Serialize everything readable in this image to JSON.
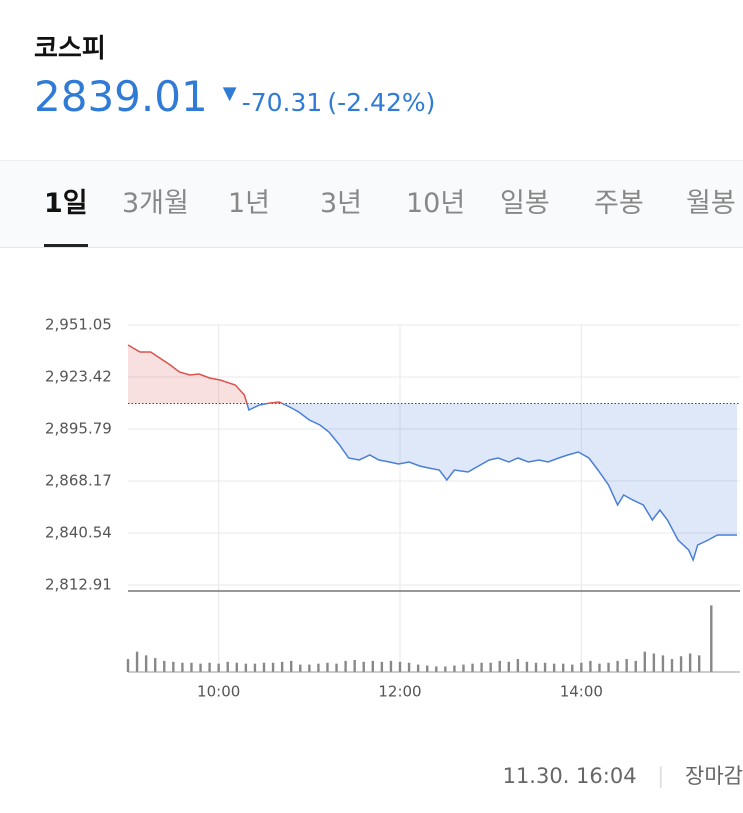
{
  "header": {
    "name": "코스피",
    "price": "2839.01",
    "change": "-70.31",
    "change_pct": "(-2.42%)"
  },
  "tabs": {
    "items": [
      "1일",
      "3개월",
      "1년",
      "3년",
      "10년",
      "일봉",
      "주봉",
      "월봉"
    ],
    "selected": 0
  },
  "chart_data": [
    {
      "type": "line",
      "x": [
        540,
        548,
        555,
        561,
        568,
        574,
        581,
        587,
        594,
        601,
        611,
        617,
        620,
        627,
        634,
        640,
        647,
        653,
        660,
        667,
        673,
        680,
        686,
        693,
        700,
        706,
        713,
        719,
        726,
        733,
        739,
        746,
        751,
        756,
        765,
        772,
        779,
        785,
        792,
        798,
        805,
        812,
        818,
        825,
        831,
        838,
        845,
        851,
        858,
        864,
        868,
        874,
        881,
        887,
        892,
        897,
        904,
        911,
        914,
        917,
        924,
        930,
        943
      ],
      "values": [
        2940.42,
        2936.71,
        2936.71,
        2933.52,
        2929.8,
        2926.08,
        2924.49,
        2925.02,
        2922.89,
        2921.83,
        2919.17,
        2913.86,
        2905.89,
        2908.55,
        2909.61,
        2910.14,
        2907.48,
        2904.83,
        2900.58,
        2897.92,
        2894.2,
        2887.29,
        2880.39,
        2879.33,
        2881.98,
        2879.33,
        2878.26,
        2877.2,
        2878.26,
        2876.14,
        2875.07,
        2874.01,
        2868.7,
        2874.01,
        2872.95,
        2876.14,
        2879.33,
        2880.39,
        2878.26,
        2880.39,
        2878.26,
        2879.33,
        2878.26,
        2880.39,
        2881.98,
        2883.57,
        2880.39,
        2874.01,
        2866.04,
        2855.42,
        2860.73,
        2858.08,
        2855.42,
        2847.45,
        2852.74,
        2847.45,
        2836.82,
        2831.51,
        2826.19,
        2834.16,
        2836.82,
        2839.48,
        2839.48
      ],
      "baseline": 2909.32,
      "up_color": "#d9534f",
      "down_color": "#4a7fd6",
      "xlim": [
        540,
        945
      ],
      "xticks": [
        {
          "value": 600,
          "label": "10:00"
        },
        {
          "value": 720,
          "label": "12:00"
        },
        {
          "value": 840,
          "label": "14:00"
        }
      ],
      "ylim": [
        2812.91,
        2951.05
      ],
      "yticks": [
        {
          "value": 2951.05,
          "label": "2,951.05"
        },
        {
          "value": 2923.42,
          "label": "2,923.42"
        },
        {
          "value": 2895.79,
          "label": "2,895.79"
        },
        {
          "value": 2868.17,
          "label": "2,868.17"
        },
        {
          "value": 2840.54,
          "label": "2,840.54"
        },
        {
          "value": 2812.91,
          "label": "2,812.91"
        }
      ],
      "grid": true
    },
    {
      "type": "bar",
      "color": "#888888",
      "xlim": [
        540,
        945
      ],
      "ylim": [
        0,
        80
      ],
      "x": [
        540,
        546,
        552,
        558,
        564,
        570,
        576,
        582,
        588,
        594,
        600,
        606,
        612,
        618,
        624,
        630,
        636,
        642,
        648,
        654,
        660,
        666,
        672,
        678,
        684,
        690,
        696,
        702,
        708,
        714,
        720,
        726,
        732,
        738,
        744,
        750,
        756,
        762,
        768,
        774,
        780,
        786,
        792,
        798,
        804,
        810,
        816,
        822,
        828,
        834,
        840,
        846,
        852,
        858,
        864,
        870,
        876,
        882,
        888,
        894,
        900,
        906,
        912,
        918,
        926
      ],
      "values": [
        14,
        22,
        18,
        15,
        12,
        11,
        10,
        10,
        9,
        10,
        9,
        11,
        10,
        9,
        9,
        10,
        10,
        11,
        12,
        8,
        8,
        9,
        10,
        9,
        12,
        13,
        11,
        12,
        11,
        12,
        11,
        10,
        8,
        7,
        6,
        6,
        7,
        8,
        9,
        10,
        10,
        12,
        11,
        14,
        11,
        10,
        10,
        9,
        9,
        8,
        10,
        12,
        9,
        10,
        12,
        14,
        12,
        22,
        20,
        18,
        14,
        17,
        20,
        18,
        72
      ]
    }
  ],
  "footer": {
    "time": "11.30. 16:04",
    "status": "장마감"
  }
}
